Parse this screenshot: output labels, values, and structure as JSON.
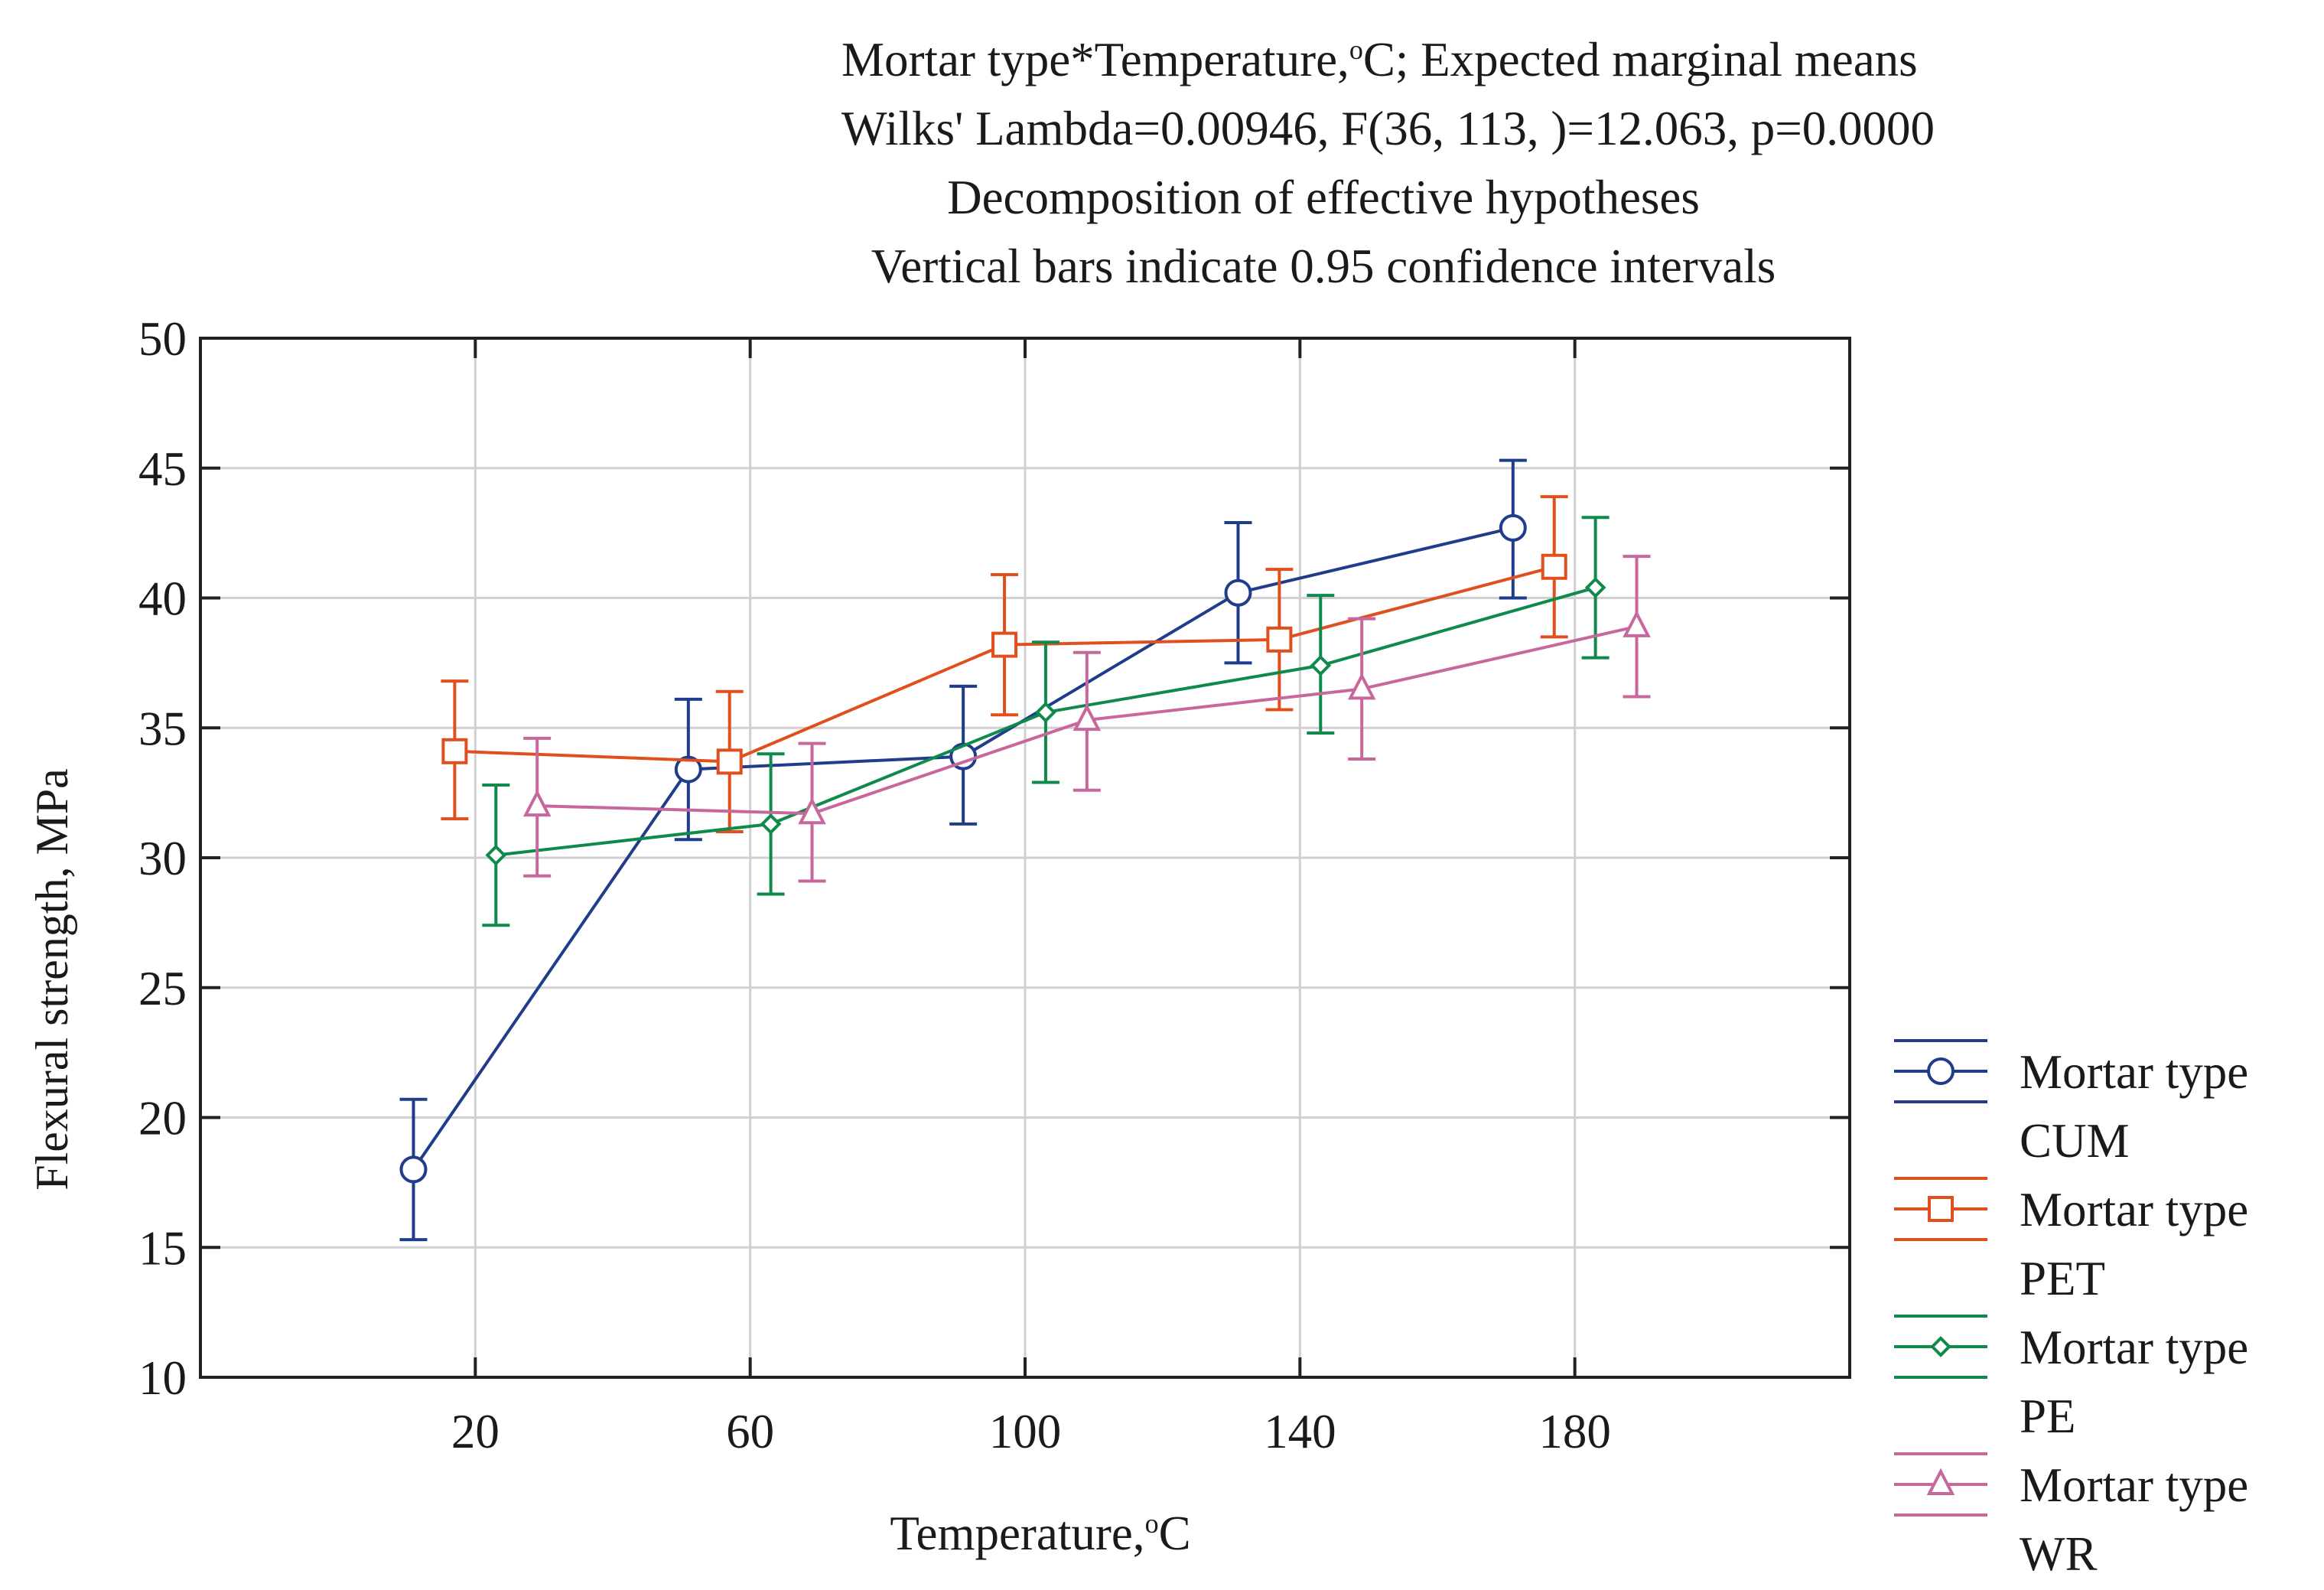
{
  "chart_data": {
    "type": "line",
    "title_lines": [
      "Mortar type*Temperature,°C; Expected marginal means",
      "Wilks' Lambda=0.00946, F(36, 113, )=12.063, p=0.0000",
      "Decomposition of effective hypotheses",
      "Vertical bars indicate 0.95 confidence intervals"
    ],
    "title_parts": {
      "line1_a": "Mortar type*Temperature,",
      "line1_sup": "o",
      "line1_b": "C; Expected marginal means"
    },
    "xlabel": {
      "text": "Temperature,",
      "sup": "o",
      "unit": "C"
    },
    "ylabel": "Flexural strength, MPa",
    "x_ticks": [
      "20",
      "60",
      "100",
      "140",
      "180"
    ],
    "y_ticks": [
      "10",
      "15",
      "20",
      "25",
      "30",
      "35",
      "40",
      "45",
      "50"
    ],
    "xlim": [
      -20,
      220
    ],
    "ylim": [
      10,
      50
    ],
    "x_categories": [
      20,
      60,
      100,
      140,
      180
    ],
    "grid": true,
    "legend_position": "right-bottom",
    "series": [
      {
        "name": "Mortar type",
        "sub": "CUM",
        "color": "#1f3d8a",
        "marker": "circle",
        "x_offset": -9,
        "values": [
          18.0,
          33.4,
          33.9,
          40.2,
          42.7
        ],
        "ci_low": [
          15.3,
          30.7,
          31.3,
          37.5,
          40.0
        ],
        "ci_high": [
          20.7,
          36.1,
          36.6,
          42.9,
          45.3
        ]
      },
      {
        "name": "Mortar type",
        "sub": "PET",
        "color": "#e0501e",
        "marker": "square",
        "x_offset": -3,
        "values": [
          34.1,
          33.7,
          38.2,
          38.4,
          41.2
        ],
        "ci_low": [
          31.5,
          31.0,
          35.5,
          35.7,
          38.5
        ],
        "ci_high": [
          36.8,
          36.4,
          40.9,
          41.1,
          43.9
        ]
      },
      {
        "name": "Mortar type",
        "sub": "PE",
        "color": "#0f8a4c",
        "marker": "diamond",
        "x_offset": 3,
        "values": [
          30.1,
          31.3,
          35.6,
          37.4,
          40.4
        ],
        "ci_low": [
          27.4,
          28.6,
          32.9,
          34.8,
          37.7
        ],
        "ci_high": [
          32.8,
          34.0,
          38.3,
          40.1,
          43.1
        ]
      },
      {
        "name": "Mortar type",
        "sub": "WR",
        "color": "#c7679b",
        "marker": "triangle",
        "x_offset": 9,
        "values": [
          32.0,
          31.7,
          35.3,
          36.5,
          38.9
        ],
        "ci_low": [
          29.3,
          29.1,
          32.6,
          33.8,
          36.2
        ],
        "ci_high": [
          34.6,
          34.4,
          37.9,
          39.2,
          41.6
        ]
      }
    ]
  }
}
